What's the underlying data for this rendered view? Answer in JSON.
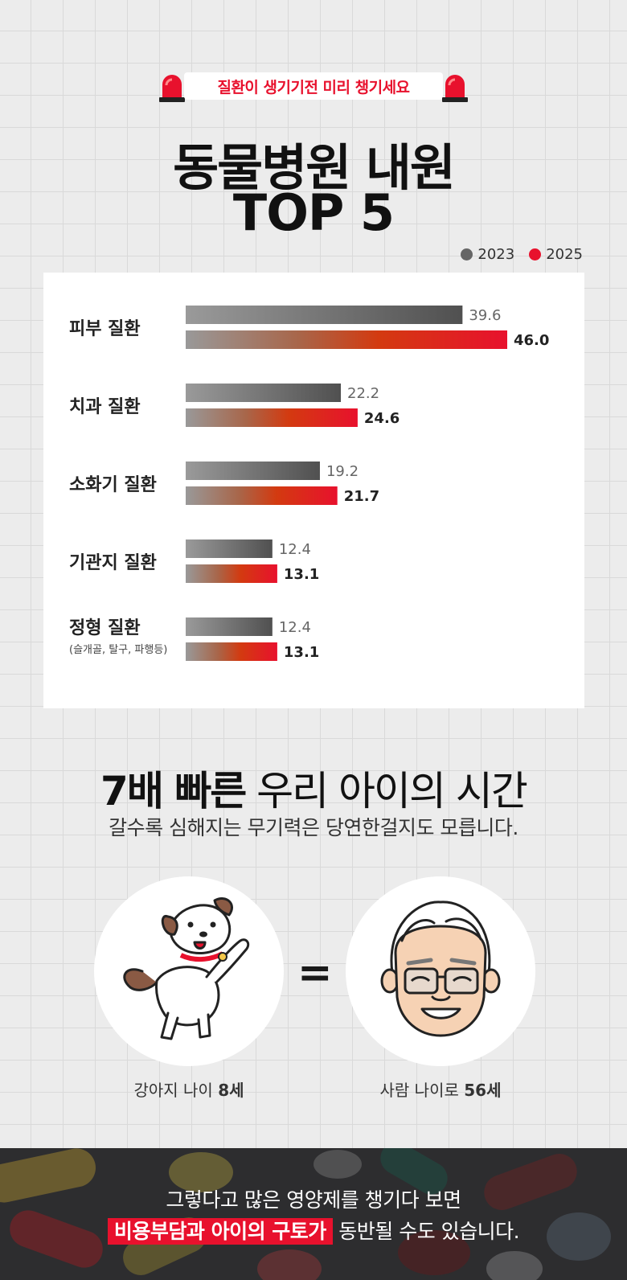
{
  "banner": {
    "text": "질환이 생기기전 미리 챙기세요"
  },
  "title": {
    "line1": "동물병원 내원",
    "line2": "TOP 5"
  },
  "legend": [
    {
      "label": "2023",
      "color": "#666666"
    },
    {
      "label": "2025",
      "color": "#e8112d"
    }
  ],
  "chart_data": {
    "type": "bar",
    "orientation": "horizontal",
    "categories": [
      {
        "name": "피부 질환",
        "note": ""
      },
      {
        "name": "치과 질환",
        "note": ""
      },
      {
        "name": "소화기 질환",
        "note": ""
      },
      {
        "name": "기관지 질환",
        "note": ""
      },
      {
        "name": "정형 질환",
        "note": "(슬개골, 탈구, 파행등)"
      }
    ],
    "series": [
      {
        "name": "2023",
        "values": [
          39.6,
          22.2,
          19.2,
          12.4,
          12.4
        ],
        "color": "#555555"
      },
      {
        "name": "2025",
        "values": [
          46.0,
          24.6,
          21.7,
          13.1,
          13.1
        ],
        "color": "#e8112d"
      }
    ],
    "value_labels": {
      "2023": [
        "39.6",
        "22.2",
        "19.2",
        "12.4",
        "12.4"
      ],
      "2025": [
        "46.0",
        "24.6",
        "21.7",
        "13.1",
        "13.1"
      ]
    },
    "xlim": [
      0,
      50
    ],
    "grid": false,
    "legend": "top-right"
  },
  "section2": {
    "heading_bold": "7배 빠른",
    "heading_rest": " 우리 아이의 시간",
    "sub": "갈수록 심해지는 무기력은 당연한걸지도 모릅니다.",
    "equals": "=",
    "dog_caption_pre": "강아지 나이 ",
    "dog_caption_bold": "8세",
    "man_caption_pre": "사람 나이로 ",
    "man_caption_bold": "56세"
  },
  "bottom": {
    "line1": "그렇다고 많은 영양제를 챙기다 보면",
    "highlight": "비용부담과 아이의 구토가",
    "line2_rest": " 동반될 수도 있습니다."
  }
}
